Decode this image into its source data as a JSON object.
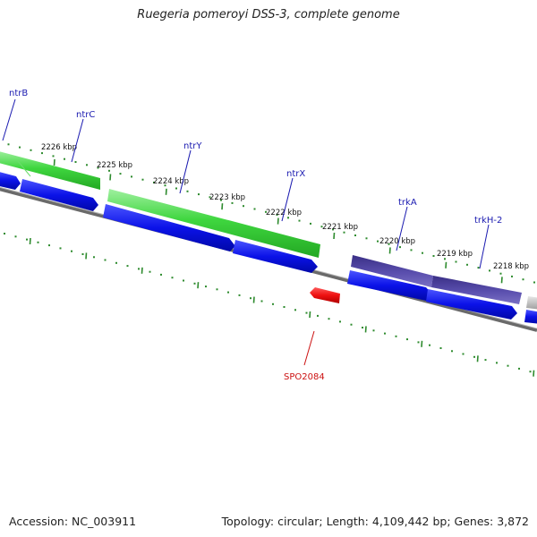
{
  "title": "Ruegeria pomeroyi DSS-3, complete genome",
  "footer": {
    "accession": "Accession: NC_003911",
    "topology": "Topology: circular; Length: 4,109,442 bp; Genes: 3,872"
  },
  "colors": {
    "ruler_ticks": "#2e8b2e",
    "backbone": "#777777",
    "forward_gene_light": "#3fd63f",
    "forward_gene_dark": "#3a2f86",
    "cds_blue": "#0b12e8",
    "rna_red": "#ee1111",
    "gene_label": "#1a1ab0",
    "rna_label": "#cc1111",
    "grey_gene": "#bdbdbd"
  },
  "ruler": {
    "unit": "kbp",
    "ticks": [
      {
        "label": "2226 kbp"
      },
      {
        "label": "2225 kbp"
      },
      {
        "label": "2224 kbp"
      },
      {
        "label": "2223 kbp"
      },
      {
        "label": "2222 kbp"
      },
      {
        "label": "2221 kbp"
      },
      {
        "label": "2220 kbp"
      },
      {
        "label": "2219 kbp"
      },
      {
        "label": "2218 kbp"
      }
    ]
  },
  "genes": [
    {
      "name": "ntrB",
      "strand": "forward"
    },
    {
      "name": "ntrC",
      "strand": "forward"
    },
    {
      "name": "ntrY",
      "strand": "forward"
    },
    {
      "name": "ntrX",
      "strand": "forward"
    },
    {
      "name": "trkA",
      "strand": "forward"
    },
    {
      "name": "trkH-2",
      "strand": "forward"
    },
    {
      "name": "SPO2084",
      "strand": "reverse",
      "type": "rna"
    }
  ]
}
